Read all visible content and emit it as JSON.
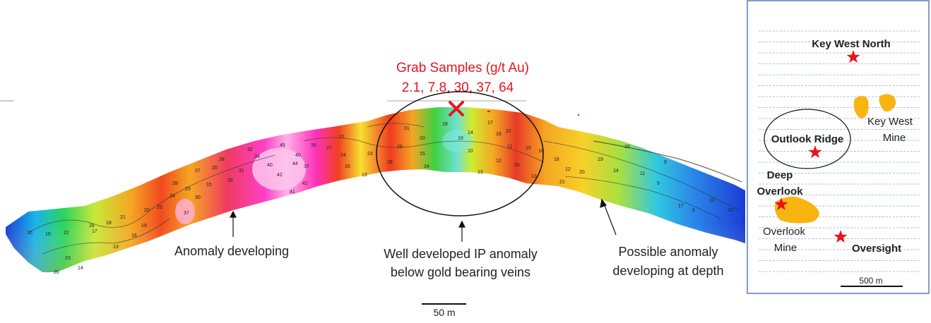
{
  "section": {
    "grab_title": "Grab Samples (g/t Au)",
    "grab_values": "2.1, 7.8, 30, 37, 64",
    "annotations": {
      "left": "Anomaly developing",
      "center_line1": "Well developed IP anomaly",
      "center_line2": "below gold bearing veins",
      "right_line1": "Possible anomaly",
      "right_line2": "developing at depth"
    },
    "scale_label": "50 m",
    "contour_values": [
      "10",
      "16",
      "22",
      "23",
      "20",
      "14",
      "17",
      "13",
      "18",
      "16",
      "19",
      "28",
      "21",
      "20",
      "25",
      "24",
      "30",
      "37",
      "39",
      "23",
      "27",
      "15",
      "20",
      "28",
      "26",
      "31",
      "32",
      "34",
      "40",
      "42",
      "44",
      "45",
      "41",
      "42",
      "37",
      "40",
      "35",
      "27",
      "24",
      "21",
      "16",
      "13",
      "23",
      "26",
      "29",
      "31",
      "20",
      "15",
      "24",
      "18",
      "19",
      "14",
      "10",
      "13",
      "17",
      "16",
      "12",
      "11",
      "22",
      "25",
      "15",
      "13",
      "18",
      "16",
      "12",
      "21",
      "20",
      "19",
      "14",
      "15",
      "11",
      "9",
      "8",
      "17",
      "6",
      "12",
      "10"
    ]
  },
  "inset": {
    "labels": {
      "key_west_north": "Key West North",
      "key_west_mine_line1": "Key West",
      "key_west_mine_line2": "Mine",
      "outlook_ridge": "Outlook Ridge",
      "deep_overlook_line1": "Deep",
      "deep_overlook_line2": "Overlook",
      "overlook_mine_line1": "Overlook",
      "overlook_mine_line2": "Mine",
      "oversight": "Oversight"
    },
    "scale_label": "500 m"
  },
  "colors": {
    "star": "#e8141e",
    "mine": "#f8b411",
    "cross": "#e8141e",
    "frame": "#5a7ab8"
  }
}
